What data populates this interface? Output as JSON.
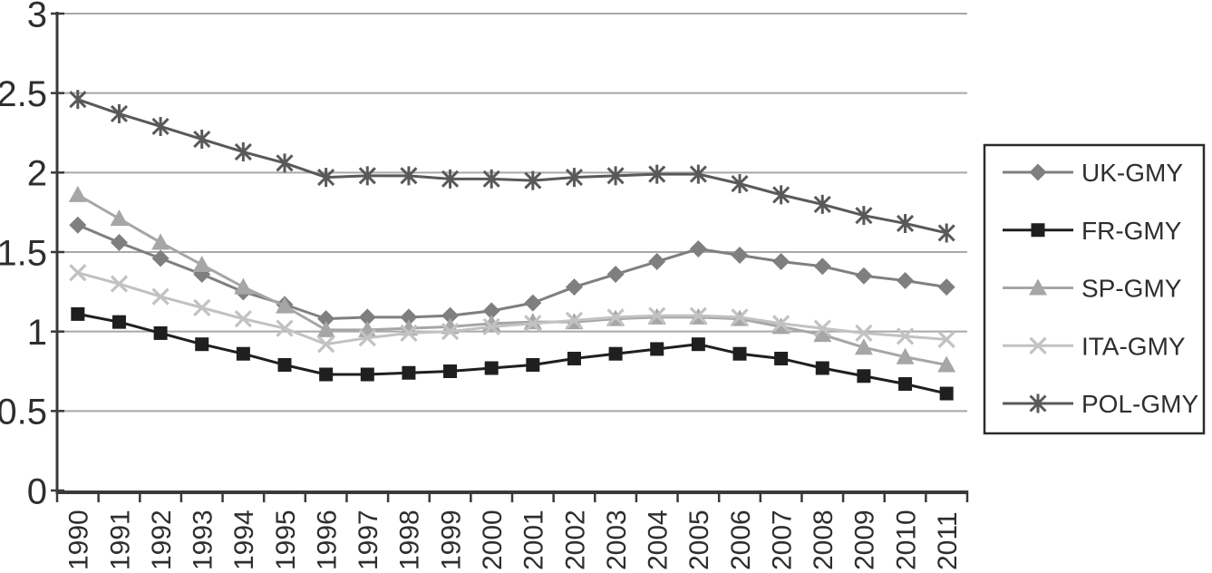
{
  "figure": {
    "background": "#ffffff",
    "title": ""
  },
  "chart_data": {
    "type": "line",
    "title": "",
    "xlabel": "",
    "ylabel": "",
    "categories": [
      "1990",
      "1991",
      "1992",
      "1993",
      "1994",
      "1995",
      "1996",
      "1997",
      "1998",
      "1999",
      "2000",
      "2001",
      "2002",
      "2003",
      "2004",
      "2005",
      "2006",
      "2007",
      "2008",
      "2009",
      "2010",
      "2011"
    ],
    "ylim": [
      0,
      3
    ],
    "ytick_step": 0.5,
    "ytick_values": [
      0,
      0.5,
      1,
      1.5,
      2,
      2.5,
      3
    ],
    "ytick_labels": [
      "0",
      "0.5",
      "1",
      "1.5",
      "2",
      "2.5",
      "3"
    ],
    "grid": "horizontal",
    "legend_position": "right",
    "series": [
      {
        "name": "UK-GMY",
        "marker": "diamond",
        "color": "#7f7f7f",
        "values": [
          1.67,
          1.56,
          1.46,
          1.36,
          1.25,
          1.17,
          1.08,
          1.09,
          1.09,
          1.1,
          1.13,
          1.18,
          1.28,
          1.36,
          1.44,
          1.52,
          1.48,
          1.44,
          1.41,
          1.35,
          1.32,
          1.28
        ]
      },
      {
        "name": "FR-GMY",
        "marker": "square",
        "color": "#1f1f1f",
        "values": [
          1.11,
          1.06,
          0.99,
          0.92,
          0.86,
          0.79,
          0.73,
          0.73,
          0.74,
          0.75,
          0.77,
          0.79,
          0.83,
          0.86,
          0.89,
          0.92,
          0.86,
          0.83,
          0.77,
          0.72,
          0.67,
          0.61
        ]
      },
      {
        "name": "SP-GMY",
        "marker": "triangle",
        "color": "#a6a6a6",
        "values": [
          1.86,
          1.71,
          1.56,
          1.42,
          1.28,
          1.16,
          1.01,
          1.01,
          1.02,
          1.03,
          1.05,
          1.06,
          1.06,
          1.08,
          1.09,
          1.09,
          1.08,
          1.03,
          0.98,
          0.9,
          0.84,
          0.79
        ]
      },
      {
        "name": "ITA-GMY",
        "marker": "x",
        "color": "#c2c2c2",
        "values": [
          1.37,
          1.3,
          1.22,
          1.15,
          1.08,
          1.02,
          0.92,
          0.96,
          0.99,
          1.0,
          1.03,
          1.05,
          1.07,
          1.09,
          1.1,
          1.1,
          1.09,
          1.05,
          1.02,
          0.99,
          0.97,
          0.95
        ]
      },
      {
        "name": "POL-GMY",
        "marker": "asterisk",
        "color": "#595959",
        "values": [
          2.46,
          2.37,
          2.29,
          2.21,
          2.13,
          2.06,
          1.97,
          1.98,
          1.98,
          1.96,
          1.96,
          1.95,
          1.97,
          1.98,
          1.99,
          1.99,
          1.93,
          1.86,
          1.8,
          1.73,
          1.68,
          1.62
        ]
      }
    ]
  },
  "colors": {
    "gridline": "#a8a8a8",
    "axis": "#3a3a3a",
    "tick_text": "#2e2e2e",
    "legend_border": "#2b2b2b",
    "legend_text": "#262626",
    "background": "#ffffff"
  }
}
